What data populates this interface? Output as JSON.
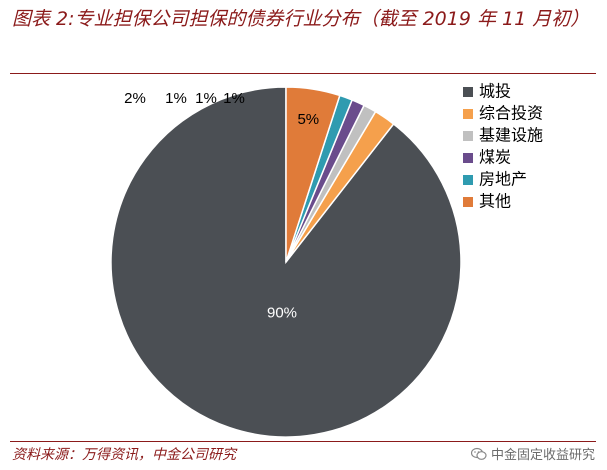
{
  "title": "图表 2:专业担保公司担保的债券行业分布（截至 2019 年 11 月初）",
  "source": "资料来源：万得资讯，中金公司研究",
  "watermark": "中金固定收益研究",
  "watermark_icon": "wechat-icon",
  "chart_data": {
    "type": "pie",
    "title": "",
    "start_angle_deg": 0,
    "direction": "counterclockwise",
    "legend_position": "right",
    "slices": [
      {
        "name": "城投",
        "value": 90,
        "label": "90%",
        "color": "#4b4f54"
      },
      {
        "name": "综合投资",
        "value": 2,
        "label": "2%",
        "color": "#f5a04c"
      },
      {
        "name": "基建设施",
        "value": 1.2,
        "label": "1%",
        "color": "#c0c0c0"
      },
      {
        "name": "煤炭",
        "value": 1.2,
        "label": "1%",
        "color": "#6a4c8c"
      },
      {
        "name": "房地产",
        "value": 1.2,
        "label": "1%",
        "color": "#2f9bb0"
      },
      {
        "name": "其他",
        "value": 5,
        "label": "5%",
        "color": "#e07b39"
      }
    ]
  }
}
